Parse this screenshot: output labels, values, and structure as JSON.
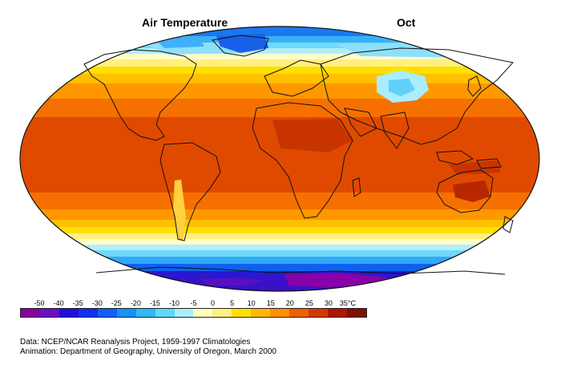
{
  "title": "Air Temperature",
  "month": "Oct",
  "legend": {
    "labels": [
      "-50",
      "-40",
      "-35",
      "-30",
      "-25",
      "-20",
      "-15",
      "-10",
      "-5",
      "0",
      "5",
      "10",
      "15",
      "20",
      "25",
      "30",
      "35°C"
    ],
    "colors": [
      "#8800a0",
      "#6a10c0",
      "#2010d8",
      "#1030f0",
      "#1060f8",
      "#1890f8",
      "#30b8f8",
      "#60d8fa",
      "#a8f0fc",
      "#ffffc0",
      "#fff080",
      "#ffe000",
      "#ffb800",
      "#ff9000",
      "#f06000",
      "#d83800",
      "#b01800",
      "#801000"
    ]
  },
  "credits": {
    "line1": "Data:  NCEP/NCAR Reanalysis Project, 1959-1997 Climatologies",
    "line2": "Animation:  Department of Geography, University of Oregon, March 2000"
  }
}
